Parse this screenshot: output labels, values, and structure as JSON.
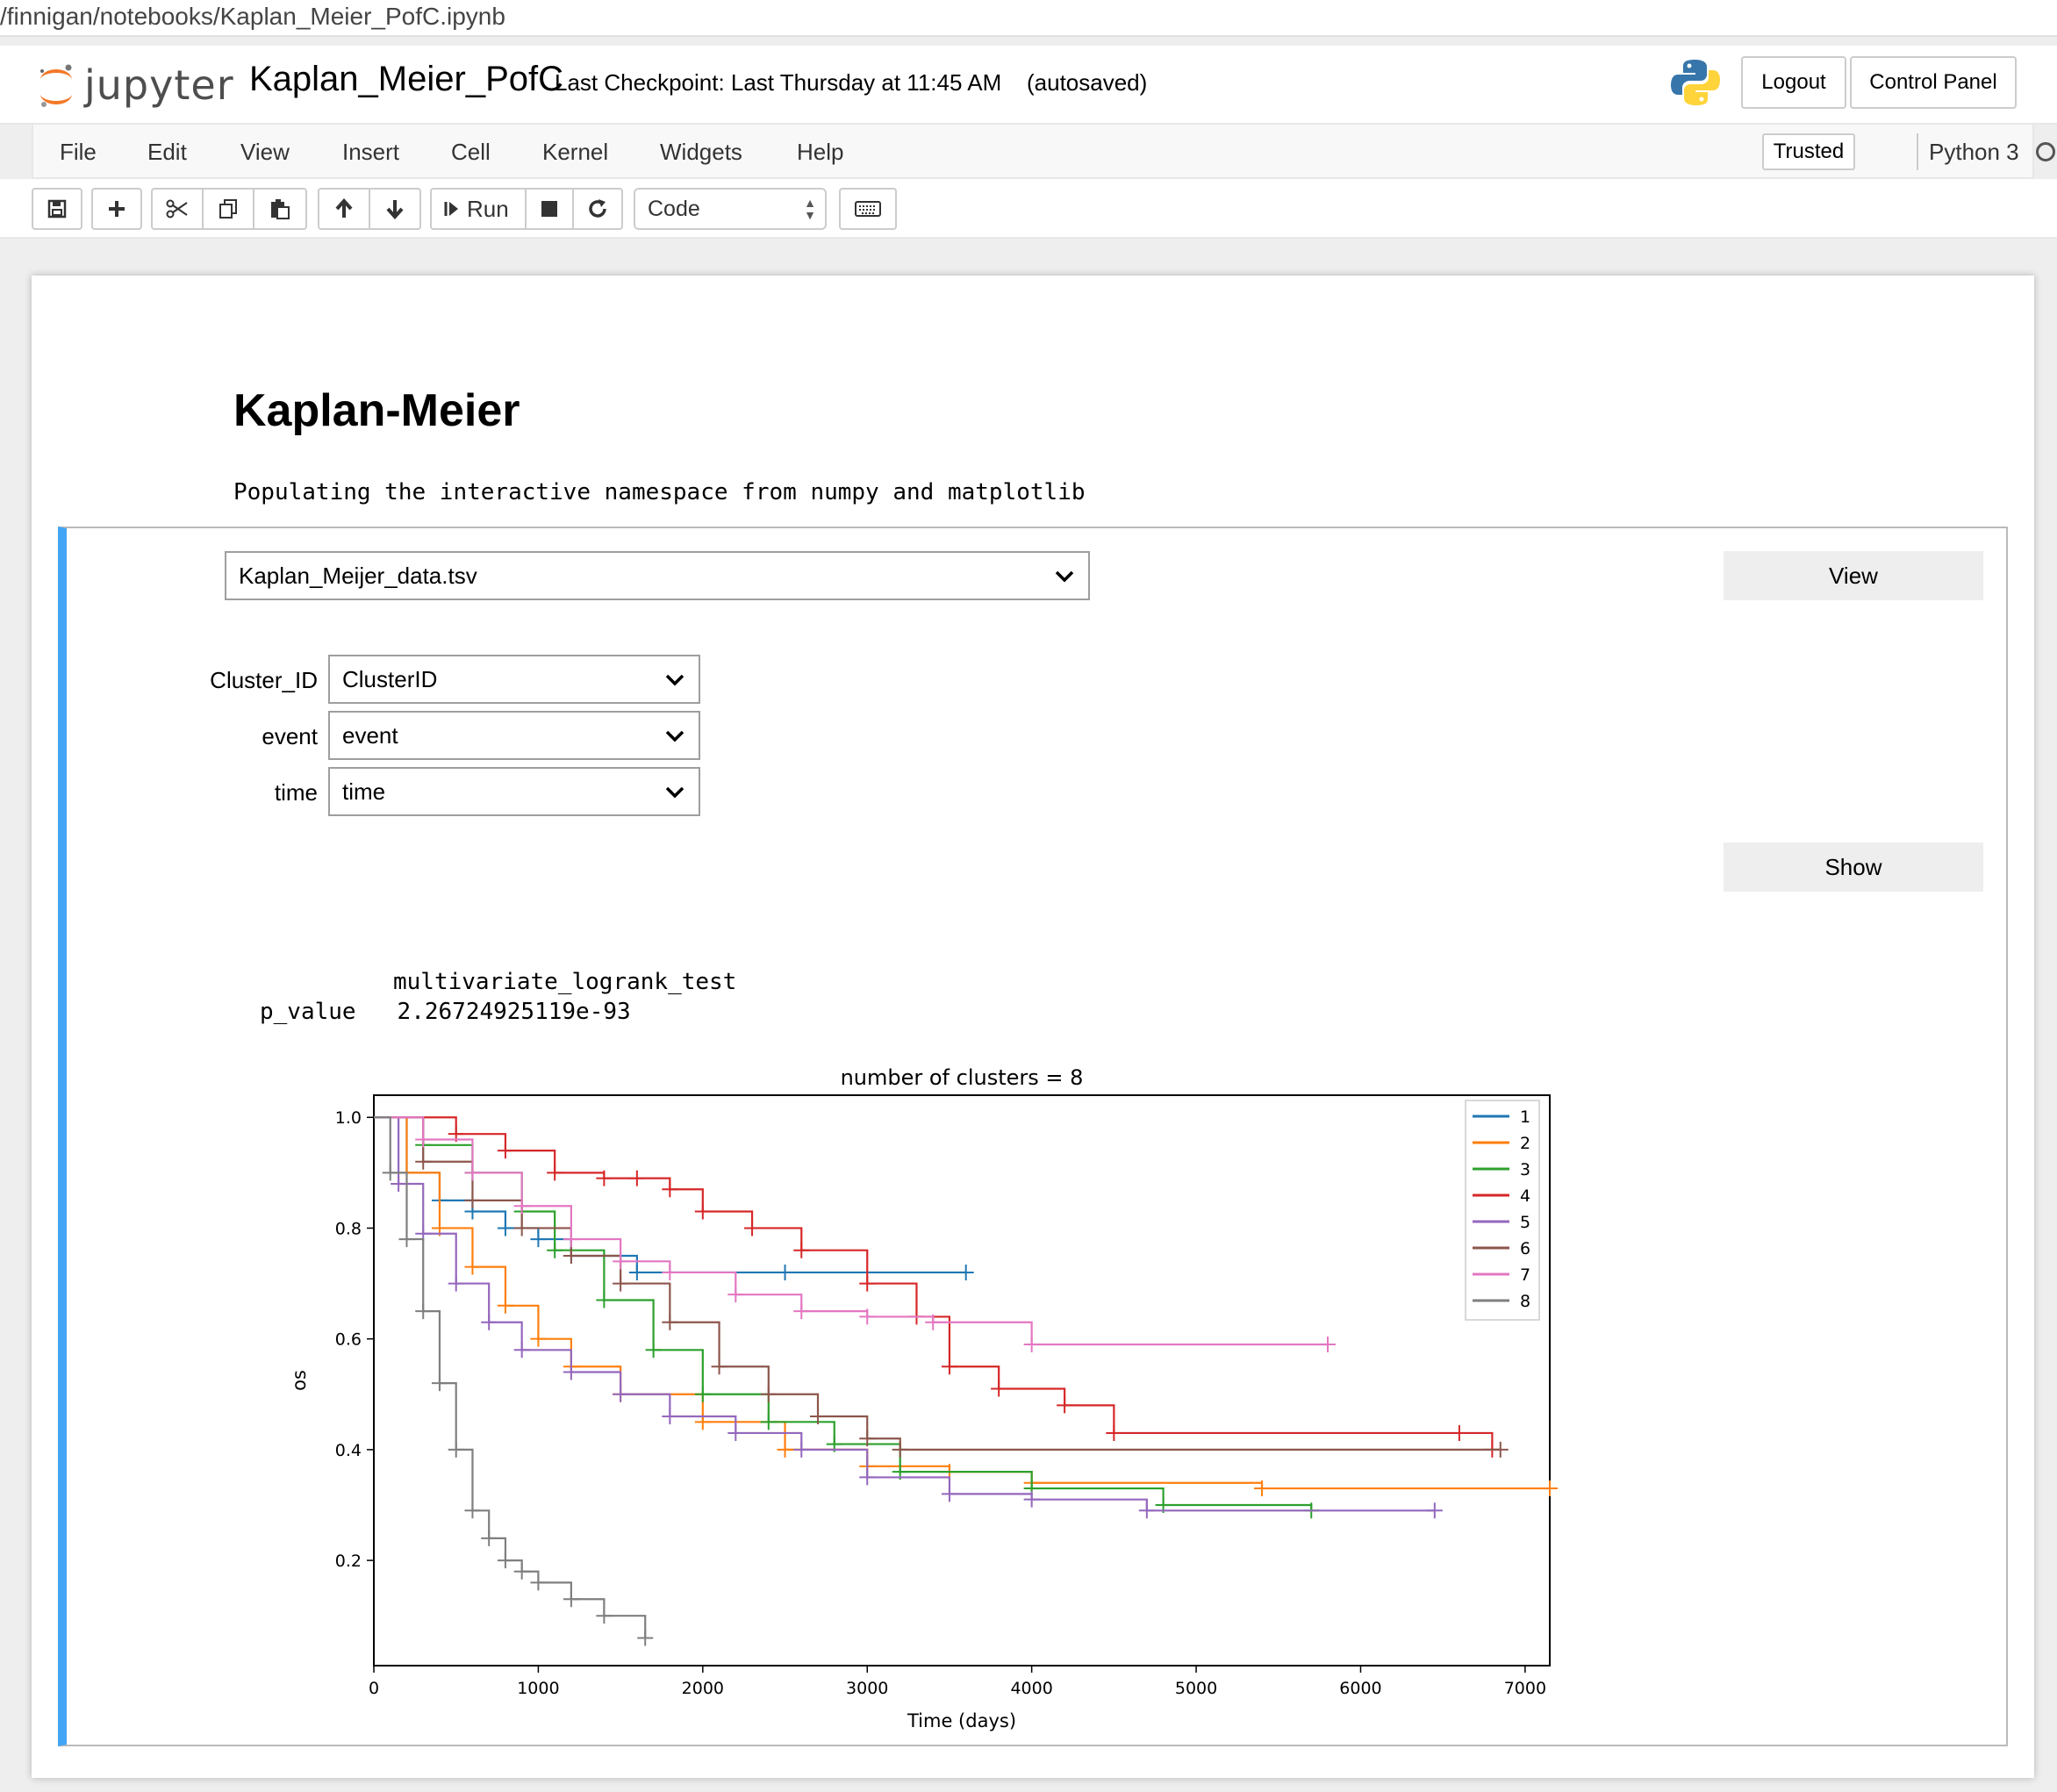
{
  "browser": {
    "url_fragment": "/finnigan/notebooks/Kaplan_Meier_PofC.ipynb"
  },
  "header": {
    "logo_text": "jupyter",
    "notebook_name": "Kaplan_Meier_PofC",
    "checkpoint": "Last Checkpoint: Last Thursday at 11:45 AM",
    "autosaved": "(autosaved)",
    "logout_label": "Logout",
    "control_panel_label": "Control Panel"
  },
  "menubar": {
    "items": [
      "File",
      "Edit",
      "View",
      "Insert",
      "Cell",
      "Kernel",
      "Widgets",
      "Help"
    ],
    "trusted_label": "Trusted",
    "kernel_name": "Python 3"
  },
  "toolbar": {
    "run_label": "Run",
    "cell_type": "Code",
    "icons": [
      "save-icon",
      "plus-icon",
      "cut-icon",
      "copy-icon",
      "paste-icon",
      "arrow-up-icon",
      "arrow-down-icon",
      "run-icon",
      "stop-icon",
      "restart-icon",
      "keyboard-icon"
    ]
  },
  "content": {
    "heading": "Kaplan-Meier",
    "stream_output": "Populating the interactive namespace from numpy and matplotlib"
  },
  "widgets": {
    "file_select": "Kaplan_Meijer_data.tsv",
    "view_label": "View",
    "cluster_label": "Cluster_ID",
    "cluster_value": "ClusterID",
    "event_label": "event",
    "event_value": "event",
    "time_label": "time",
    "time_value": "time",
    "show_label": "Show"
  },
  "results": {
    "test_name": "multivariate_logrank_test",
    "p_label": "p_value",
    "p_value": "2.26724925119e-93"
  },
  "chart_data": {
    "type": "line",
    "title": "number of clusters = 8",
    "xlabel": "Time (days)",
    "ylabel": "os",
    "xlim": [
      0,
      7150
    ],
    "ylim": [
      0.01,
      1.04
    ],
    "xticks": [
      "0",
      "1000",
      "2000",
      "3000",
      "4000",
      "5000",
      "6000",
      "7000"
    ],
    "yticks": [
      "0.2",
      "0.4",
      "0.6",
      "0.8",
      "1.0"
    ],
    "legend_position": "top-right",
    "series": [
      {
        "name": "1",
        "color": "#1f77b4",
        "x": [
          0,
          200,
          400,
          600,
          800,
          1000,
          1200,
          1600,
          2500,
          3600
        ],
        "y": [
          1.0,
          0.9,
          0.85,
          0.83,
          0.8,
          0.78,
          0.75,
          0.72,
          0.72,
          0.72
        ]
      },
      {
        "name": "2",
        "color": "#ff7f0e",
        "x": [
          0,
          200,
          400,
          600,
          800,
          1000,
          1200,
          1500,
          2000,
          2500,
          3000,
          3500,
          4000,
          5400,
          7150
        ],
        "y": [
          1.0,
          0.9,
          0.8,
          0.73,
          0.66,
          0.6,
          0.55,
          0.5,
          0.45,
          0.4,
          0.37,
          0.36,
          0.34,
          0.33,
          0.33
        ]
      },
      {
        "name": "3",
        "color": "#2ca02c",
        "x": [
          0,
          300,
          600,
          900,
          1100,
          1400,
          1700,
          2000,
          2400,
          2800,
          3200,
          4000,
          4800,
          5700
        ],
        "y": [
          1.0,
          0.95,
          0.9,
          0.83,
          0.76,
          0.67,
          0.58,
          0.5,
          0.45,
          0.41,
          0.36,
          0.33,
          0.3,
          0.29
        ]
      },
      {
        "name": "4",
        "color": "#d62728",
        "x": [
          0,
          500,
          800,
          1100,
          1400,
          1600,
          1800,
          2000,
          2300,
          2600,
          3000,
          3300,
          3500,
          3800,
          4200,
          4500,
          6600,
          6800
        ],
        "y": [
          1.0,
          0.97,
          0.94,
          0.9,
          0.89,
          0.89,
          0.87,
          0.83,
          0.8,
          0.76,
          0.7,
          0.64,
          0.55,
          0.51,
          0.48,
          0.43,
          0.43,
          0.4
        ]
      },
      {
        "name": "5",
        "color": "#9467bd",
        "x": [
          0,
          150,
          300,
          500,
          700,
          900,
          1200,
          1500,
          1800,
          2200,
          2600,
          3000,
          3500,
          4000,
          4700,
          6450
        ],
        "y": [
          1.0,
          0.88,
          0.79,
          0.7,
          0.63,
          0.58,
          0.54,
          0.5,
          0.46,
          0.43,
          0.4,
          0.35,
          0.32,
          0.31,
          0.29,
          0.29
        ]
      },
      {
        "name": "6",
        "color": "#8c564b",
        "x": [
          0,
          300,
          600,
          900,
          1200,
          1500,
          1800,
          2100,
          2400,
          2700,
          3000,
          3200,
          6850
        ],
        "y": [
          1.0,
          0.92,
          0.85,
          0.8,
          0.75,
          0.7,
          0.63,
          0.55,
          0.5,
          0.46,
          0.42,
          0.4,
          0.4
        ]
      },
      {
        "name": "7",
        "color": "#e377c2",
        "x": [
          0,
          300,
          600,
          900,
          1200,
          1500,
          1800,
          2200,
          2600,
          3000,
          3400,
          4000,
          5800
        ],
        "y": [
          1.0,
          0.96,
          0.9,
          0.84,
          0.78,
          0.74,
          0.72,
          0.68,
          0.65,
          0.64,
          0.63,
          0.59,
          0.59
        ]
      },
      {
        "name": "8",
        "color": "#7f7f7f",
        "x": [
          0,
          100,
          200,
          300,
          400,
          500,
          600,
          700,
          800,
          900,
          1000,
          1200,
          1400,
          1650
        ],
        "y": [
          1.0,
          0.9,
          0.78,
          0.65,
          0.52,
          0.4,
          0.29,
          0.24,
          0.2,
          0.18,
          0.16,
          0.13,
          0.1,
          0.06
        ]
      }
    ]
  }
}
